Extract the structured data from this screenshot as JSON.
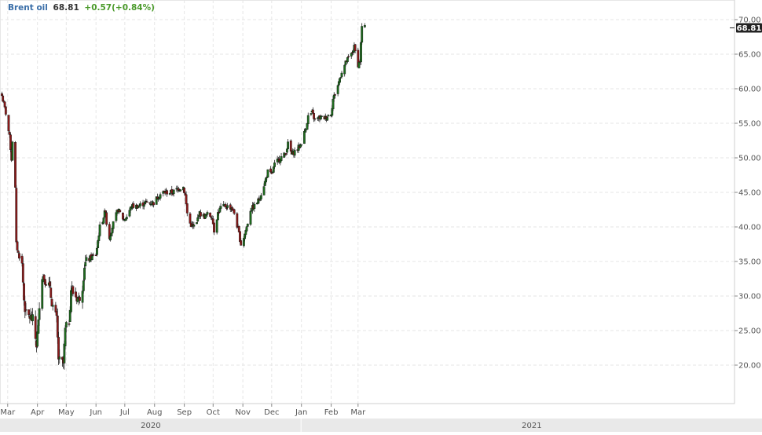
{
  "header": {
    "instrument": "Brent oil",
    "last": "68.81",
    "change": "+0.57(+0.84%)"
  },
  "colors": {
    "up_candle": "#1e6b1e",
    "down_candle": "#8b1a1a",
    "wick": "#222222",
    "grid": "#e6e6e6",
    "price_badge": "#222222",
    "header_name": "#3a6ea8",
    "header_change": "#4a9a2a"
  },
  "chart_data": {
    "type": "candlestick",
    "title": "",
    "xlabel": "",
    "ylabel": "",
    "y_ticks": [
      "20.00",
      "25.00",
      "30.00",
      "35.00",
      "40.00",
      "45.00",
      "50.00",
      "55.00",
      "60.00",
      "65.00",
      "70.00"
    ],
    "ylim": [
      14,
      71.9
    ],
    "x_months": [
      "Mar",
      "Apr",
      "May",
      "Jun",
      "Jul",
      "Aug",
      "Sep",
      "Oct",
      "Nov",
      "Dec",
      "Jan",
      "Feb",
      "Mar"
    ],
    "years": [
      "2020",
      "2021"
    ],
    "last_price_label": "68.81",
    "grid": true,
    "close_path": [
      [
        "2020-02-24",
        59.0
      ],
      [
        "2020-02-28",
        56.5
      ],
      [
        "2020-03-03",
        53.0
      ],
      [
        "2020-03-05",
        49.8
      ],
      [
        "2020-03-06",
        52.5
      ],
      [
        "2020-03-09",
        45.5
      ],
      [
        "2020-03-10",
        37.5
      ],
      [
        "2020-03-12",
        36.2
      ],
      [
        "2020-03-16",
        34.5
      ],
      [
        "2020-03-18",
        29.5
      ],
      [
        "2020-03-20",
        27.2
      ],
      [
        "2020-03-24",
        27.0
      ],
      [
        "2020-03-27",
        26.5
      ],
      [
        "2020-03-31",
        23.0
      ],
      [
        "2020-04-02",
        26.0
      ],
      [
        "2020-04-03",
        29.0
      ],
      [
        "2020-04-06",
        33.0
      ],
      [
        "2020-04-09",
        32.5
      ],
      [
        "2020-04-13",
        31.5
      ],
      [
        "2020-04-17",
        28.5
      ],
      [
        "2020-04-21",
        26.5
      ],
      [
        "2020-04-23",
        21.0
      ],
      [
        "2020-04-24",
        20.5
      ],
      [
        "2020-04-28",
        20.2
      ],
      [
        "2020-04-30",
        25.0
      ],
      [
        "2020-05-04",
        26.5
      ],
      [
        "2020-05-06",
        31.0
      ],
      [
        "2020-05-08",
        30.5
      ],
      [
        "2020-05-14",
        29.5
      ],
      [
        "2020-05-18",
        31.5
      ],
      [
        "2020-05-20",
        34.5
      ],
      [
        "2020-05-26",
        35.5
      ],
      [
        "2020-06-01",
        36.0
      ],
      [
        "2020-06-05",
        40.0
      ],
      [
        "2020-06-08",
        41.0
      ],
      [
        "2020-06-11",
        42.5
      ],
      [
        "2020-06-12",
        40.5
      ],
      [
        "2020-06-15",
        38.5
      ],
      [
        "2020-06-19",
        40.5
      ],
      [
        "2020-06-24",
        42.5
      ],
      [
        "2020-06-26",
        42.0
      ],
      [
        "2020-06-30",
        41.0
      ],
      [
        "2020-07-03",
        41.5
      ],
      [
        "2020-07-08",
        43.0
      ],
      [
        "2020-07-15",
        43.0
      ],
      [
        "2020-07-22",
        43.5
      ],
      [
        "2020-07-31",
        43.5
      ],
      [
        "2020-08-05",
        44.5
      ],
      [
        "2020-08-10",
        45.0
      ],
      [
        "2020-08-20",
        45.0
      ],
      [
        "2020-08-25",
        45.5
      ],
      [
        "2020-08-31",
        45.8
      ],
      [
        "2020-09-02",
        44.5
      ],
      [
        "2020-09-04",
        42.0
      ],
      [
        "2020-09-07",
        40.5
      ],
      [
        "2020-09-10",
        40.0
      ],
      [
        "2020-09-14",
        40.5
      ],
      [
        "2020-09-16",
        42.0
      ],
      [
        "2020-09-22",
        41.5
      ],
      [
        "2020-09-25",
        41.8
      ],
      [
        "2020-09-30",
        41.5
      ],
      [
        "2020-10-02",
        39.5
      ],
      [
        "2020-10-06",
        42.0
      ],
      [
        "2020-10-09",
        42.8
      ],
      [
        "2020-10-14",
        43.0
      ],
      [
        "2020-10-20",
        42.8
      ],
      [
        "2020-10-23",
        42.0
      ],
      [
        "2020-10-28",
        39.0
      ],
      [
        "2020-10-30",
        37.5
      ],
      [
        "2020-11-02",
        38.5
      ],
      [
        "2020-11-05",
        40.0
      ],
      [
        "2020-11-09",
        42.5
      ],
      [
        "2020-11-13",
        43.0
      ],
      [
        "2020-11-18",
        44.0
      ],
      [
        "2020-11-24",
        46.5
      ],
      [
        "2020-11-27",
        48.0
      ],
      [
        "2020-12-01",
        47.5
      ],
      [
        "2020-12-04",
        49.0
      ],
      [
        "2020-12-10",
        50.0
      ],
      [
        "2020-12-15",
        50.5
      ],
      [
        "2020-12-18",
        52.0
      ],
      [
        "2020-12-22",
        50.5
      ],
      [
        "2020-12-31",
        51.8
      ],
      [
        "2021-01-06",
        54.5
      ],
      [
        "2021-01-08",
        56.0
      ],
      [
        "2021-01-12",
        56.5
      ],
      [
        "2021-01-15",
        55.5
      ],
      [
        "2021-01-20",
        55.8
      ],
      [
        "2021-01-26",
        55.8
      ],
      [
        "2021-02-01",
        56.5
      ],
      [
        "2021-02-03",
        58.5
      ],
      [
        "2021-02-08",
        60.5
      ],
      [
        "2021-02-12",
        62.5
      ],
      [
        "2021-02-17",
        64.0
      ],
      [
        "2021-02-22",
        65.0
      ],
      [
        "2021-02-25",
        66.0
      ],
      [
        "2021-03-01",
        63.5
      ],
      [
        "2021-03-03",
        64.0
      ],
      [
        "2021-03-04",
        66.5
      ],
      [
        "2021-03-05",
        69.0
      ],
      [
        "2021-03-08",
        68.8
      ]
    ]
  }
}
